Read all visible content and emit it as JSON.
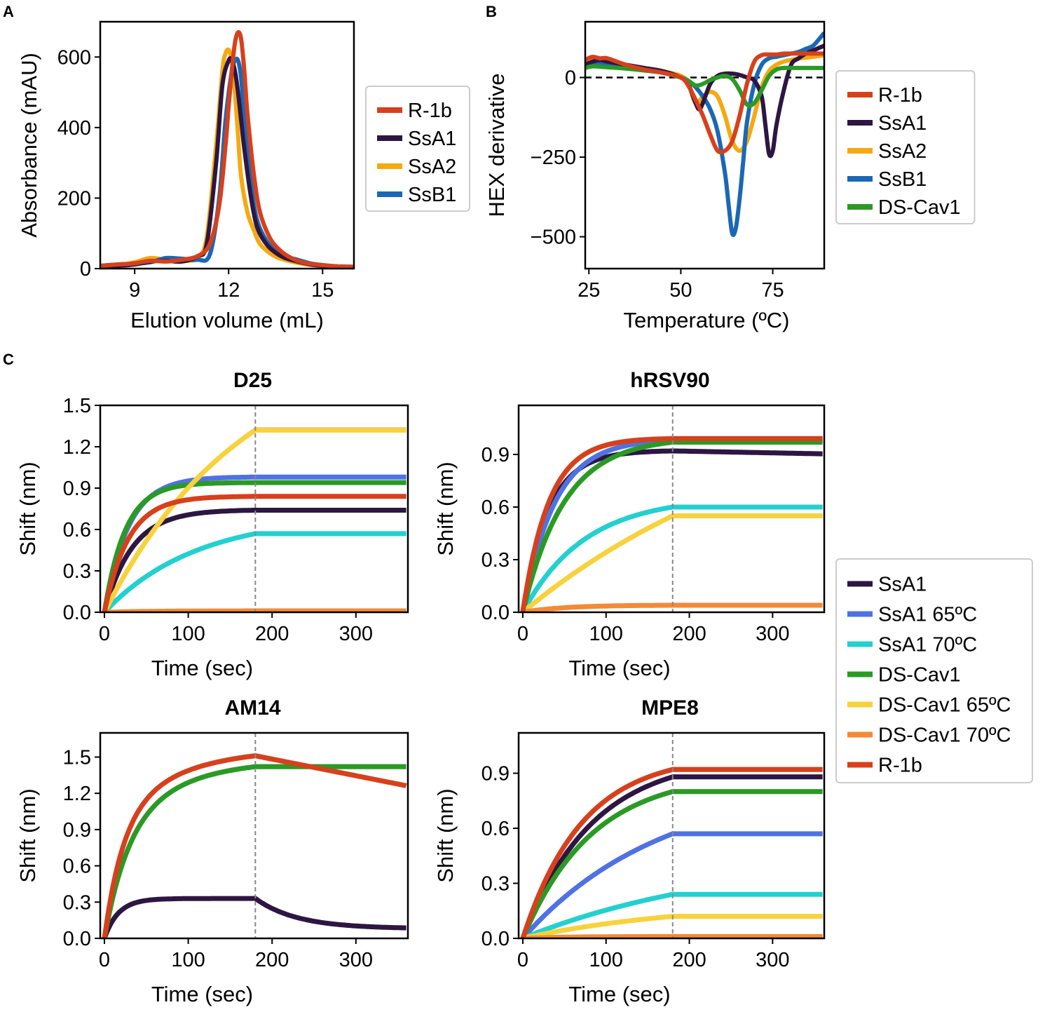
{
  "panel_letters": {
    "a": "A",
    "b": "B",
    "c": "C"
  },
  "legend_c_title": "",
  "chart_data": [
    {
      "id": "A",
      "type": "line",
      "title": "",
      "xlabel": "Elution volume (mL)",
      "ylabel": "Absorbance (mAU)",
      "xlim": [
        7.9,
        16.0
      ],
      "ylim": [
        0,
        700
      ],
      "xticks": [
        9,
        12,
        15
      ],
      "yticks": [
        0,
        200,
        400,
        600
      ],
      "legend_position": "right",
      "series": [
        {
          "name": "SsA2",
          "color": "#f5a912",
          "x": [
            7.9,
            8.5,
            9.0,
            9.5,
            10.0,
            10.5,
            11.0,
            11.3,
            11.6,
            11.8,
            11.9,
            12.0,
            12.1,
            12.2,
            12.3,
            12.4,
            12.6,
            12.8,
            13.0,
            13.3,
            13.6,
            14.0,
            14.5,
            15.0,
            15.5,
            16.0
          ],
          "y": [
            5,
            10,
            18,
            30,
            25,
            22,
            30,
            90,
            350,
            560,
            610,
            620,
            590,
            500,
            380,
            260,
            160,
            110,
            70,
            45,
            30,
            20,
            12,
            8,
            5,
            4
          ]
        },
        {
          "name": "SsB1",
          "color": "#1a68b5",
          "x": [
            7.9,
            8.5,
            9.0,
            9.5,
            10.0,
            10.5,
            11.0,
            11.4,
            11.7,
            11.9,
            12.1,
            12.2,
            12.3,
            12.4,
            12.5,
            12.7,
            12.9,
            13.2,
            13.5,
            13.8,
            14.2,
            14.6,
            15.0,
            15.5,
            16.0
          ],
          "y": [
            8,
            12,
            14,
            18,
            30,
            28,
            25,
            40,
            200,
            420,
            560,
            590,
            590,
            540,
            430,
            250,
            140,
            80,
            50,
            35,
            25,
            15,
            10,
            6,
            5
          ]
        },
        {
          "name": "SsA1",
          "color": "#2d1641",
          "x": [
            7.9,
            8.5,
            9.0,
            9.5,
            10.0,
            10.5,
            11.0,
            11.3,
            11.6,
            11.8,
            12.0,
            12.1,
            12.2,
            12.3,
            12.4,
            12.5,
            12.7,
            12.9,
            13.2,
            13.5,
            13.8,
            14.2,
            14.6,
            15.0,
            15.5,
            16.0
          ],
          "y": [
            5,
            8,
            12,
            20,
            22,
            20,
            35,
            70,
            300,
            520,
            590,
            590,
            560,
            500,
            420,
            340,
            210,
            120,
            70,
            45,
            30,
            20,
            12,
            8,
            6,
            5
          ]
        },
        {
          "name": "R-1b",
          "color": "#d7401c",
          "x": [
            7.9,
            8.5,
            9.0,
            9.5,
            10.0,
            10.5,
            11.0,
            11.4,
            11.7,
            11.9,
            12.0,
            12.1,
            12.2,
            12.3,
            12.4,
            12.5,
            12.6,
            12.8,
            13.0,
            13.3,
            13.6,
            14.0,
            14.5,
            15.0,
            15.5,
            16.0
          ],
          "y": [
            8,
            12,
            15,
            22,
            20,
            25,
            35,
            70,
            180,
            350,
            460,
            560,
            640,
            670,
            650,
            560,
            440,
            270,
            160,
            90,
            55,
            30,
            15,
            10,
            6,
            5
          ]
        }
      ],
      "legend_order": [
        "R-1b",
        "SsA1",
        "SsA2",
        "SsB1"
      ]
    },
    {
      "id": "B",
      "type": "line",
      "title": "",
      "xlabel": "Temperature (ºC)",
      "ylabel": "HEX derivative",
      "xlim": [
        24,
        89
      ],
      "ylim": [
        -600,
        175
      ],
      "xticks": [
        25,
        50,
        75
      ],
      "yticks": [
        -500,
        -250,
        0
      ],
      "zero_line": true,
      "legend_position": "right",
      "series": [
        {
          "name": "SsA2",
          "color": "#f5a912",
          "x": [
            24,
            26,
            28,
            30,
            35,
            40,
            45,
            50,
            52,
            54,
            56,
            58,
            60,
            62,
            64,
            66,
            68,
            70,
            72,
            74,
            76,
            78,
            80,
            82,
            84,
            86,
            89
          ],
          "y": [
            45,
            55,
            55,
            50,
            40,
            30,
            20,
            5,
            -20,
            -80,
            -60,
            -45,
            -60,
            -120,
            -200,
            -230,
            -200,
            -120,
            -30,
            20,
            40,
            50,
            55,
            60,
            62,
            65,
            70
          ]
        },
        {
          "name": "SsB1",
          "color": "#1a68b5",
          "x": [
            24,
            26,
            28,
            30,
            35,
            40,
            45,
            50,
            52,
            54,
            56,
            58,
            60,
            62,
            63,
            64,
            65,
            66,
            67,
            68,
            70,
            72,
            74,
            76,
            78,
            80,
            82,
            84,
            86,
            89
          ],
          "y": [
            35,
            40,
            42,
            40,
            35,
            25,
            15,
            0,
            -10,
            -30,
            -60,
            -100,
            -170,
            -300,
            -400,
            -490,
            -470,
            -380,
            -260,
            -140,
            -20,
            40,
            60,
            65,
            70,
            75,
            80,
            90,
            100,
            140
          ]
        },
        {
          "name": "SsA1",
          "color": "#2d1641",
          "x": [
            24,
            26,
            28,
            30,
            35,
            40,
            45,
            50,
            52,
            54,
            55,
            56,
            58,
            60,
            62,
            64,
            66,
            68,
            70,
            72,
            73,
            74,
            75,
            76,
            78,
            80,
            82,
            84,
            86,
            89
          ],
          "y": [
            40,
            50,
            55,
            50,
            40,
            30,
            20,
            0,
            -20,
            -80,
            -100,
            -80,
            -20,
            5,
            12,
            12,
            8,
            0,
            -10,
            -60,
            -150,
            -240,
            -230,
            -150,
            -40,
            40,
            60,
            75,
            85,
            100
          ]
        },
        {
          "name": "DS-Cav1",
          "color": "#2a9a25",
          "x": [
            24,
            26,
            30,
            35,
            40,
            45,
            50,
            52,
            54,
            56,
            58,
            60,
            62,
            64,
            66,
            68,
            70,
            72,
            74,
            76,
            78,
            80,
            84,
            89
          ],
          "y": [
            30,
            35,
            32,
            28,
            22,
            15,
            0,
            -10,
            -25,
            -20,
            -8,
            0,
            5,
            -5,
            -40,
            -85,
            -80,
            -40,
            5,
            25,
            30,
            30,
            30,
            30
          ]
        },
        {
          "name": "R-1b",
          "color": "#d7401c",
          "x": [
            24,
            26,
            28,
            30,
            35,
            40,
            45,
            50,
            52,
            54,
            56,
            58,
            60,
            62,
            64,
            66,
            68,
            70,
            72,
            74,
            76,
            78,
            80,
            84,
            89
          ],
          "y": [
            55,
            65,
            60,
            60,
            40,
            25,
            15,
            0,
            -25,
            -70,
            -120,
            -180,
            -230,
            -230,
            -200,
            -120,
            -20,
            50,
            70,
            72,
            72,
            75,
            75,
            75,
            75
          ]
        }
      ],
      "legend_order": [
        "R-1b",
        "SsA1",
        "SsA2",
        "SsB1",
        "DS-Cav1"
      ]
    },
    {
      "id": "C-D25",
      "type": "line",
      "title": "D25",
      "xlabel": "Time (sec)",
      "ylabel": "Shift (nm)",
      "xlim": [
        -5,
        362
      ],
      "ylim": [
        0,
        1.5
      ],
      "xticks": [
        0,
        100,
        200,
        300
      ],
      "yticks": [
        0.0,
        0.3,
        0.6,
        0.9,
        1.2,
        1.5
      ],
      "dashed_vline_x": 180,
      "series": [
        {
          "name": "SsA1",
          "color": "#2d1641",
          "assoc_end": 180,
          "plateau": 0.74,
          "k": 0.03,
          "dissociation_rate": 0
        },
        {
          "name": "SsA1 65ºC",
          "color": "#4f72e3",
          "assoc_end": 180,
          "plateau": 0.98,
          "k": 0.035,
          "dissociation_rate": 0
        },
        {
          "name": "SsA1 70ºC",
          "color": "#23d0d0",
          "assoc_end": 180,
          "plateau": 0.57,
          "k": 0.0092,
          "dissociation_rate": 0
        },
        {
          "name": "DS-Cav1",
          "color": "#2a9a25",
          "assoc_end": 180,
          "plateau": 0.94,
          "k": 0.04,
          "dissociation_rate": 0
        },
        {
          "name": "DS-Cav1 65ºC",
          "color": "#f7d23c",
          "assoc_end": 180,
          "plateau": 1.32,
          "k": 0.006,
          "dissociation_rate": 0
        },
        {
          "name": "DS-Cav1 70ºC",
          "color": "#f38a36",
          "assoc_end": 180,
          "plateau": 0.01,
          "k": 0.02,
          "dissociation_rate": 0
        },
        {
          "name": "R-1b",
          "color": "#d7401c",
          "assoc_end": 180,
          "plateau": 0.84,
          "k": 0.035,
          "dissociation_rate": 0
        }
      ]
    },
    {
      "id": "C-hRSV90",
      "type": "line",
      "title": "hRSV90",
      "xlabel": "Time (sec)",
      "ylabel": "Shift (nm)",
      "xlim": [
        -5,
        362
      ],
      "ylim": [
        0,
        1.18
      ],
      "xticks": [
        0,
        100,
        200,
        300
      ],
      "yticks": [
        0.0,
        0.3,
        0.6,
        0.9
      ],
      "dashed_vline_x": 180,
      "series": [
        {
          "name": "SsA1",
          "color": "#2d1641",
          "assoc_end": 180,
          "plateau": 0.92,
          "k": 0.032,
          "dissociation_rate": 0.0001
        },
        {
          "name": "SsA1 65ºC",
          "color": "#4f72e3",
          "assoc_end": 180,
          "plateau": 0.98,
          "k": 0.026,
          "dissociation_rate": 0
        },
        {
          "name": "SsA1 70ºC",
          "color": "#23d0d0",
          "assoc_end": 180,
          "plateau": 0.6,
          "k": 0.0135,
          "dissociation_rate": 0
        },
        {
          "name": "DS-Cav1",
          "color": "#2a9a25",
          "assoc_end": 180,
          "plateau": 0.97,
          "k": 0.02,
          "dissociation_rate": 0
        },
        {
          "name": "DS-Cav1 65ºC",
          "color": "#f7d23c",
          "assoc_end": 180,
          "plateau": 0.55,
          "k": 0.003,
          "dissociation_rate": 0
        },
        {
          "name": "DS-Cav1 70ºC",
          "color": "#f38a36",
          "assoc_end": 180,
          "plateau": 0.04,
          "k": 0.02,
          "dissociation_rate": 0
        },
        {
          "name": "R-1b",
          "color": "#d7401c",
          "assoc_end": 180,
          "plateau": 0.99,
          "k": 0.032,
          "dissociation_rate": 0
        }
      ]
    },
    {
      "id": "C-AM14",
      "type": "line",
      "title": "AM14",
      "xlabel": "Time (sec)",
      "ylabel": "Shift (nm)",
      "xlim": [
        -5,
        362
      ],
      "ylim": [
        0,
        1.7
      ],
      "xticks": [
        0,
        100,
        200,
        300
      ],
      "yticks": [
        0.0,
        0.3,
        0.6,
        0.9,
        1.2,
        1.5
      ],
      "dashed_vline_x": 180,
      "series": [
        {
          "name": "SsA1",
          "color": "#2d1641",
          "assoc_end": 180,
          "plateau": 0.33,
          "k": 0.06,
          "biphasic_fast": 0.0,
          "dissociation_shape": "decay",
          "dissociation_floor": 0.08,
          "dissociation_k": 0.02
        },
        {
          "name": "DS-Cav1",
          "color": "#2a9a25",
          "assoc_end": 180,
          "plateau": 1.42,
          "k": 0.035,
          "biphasic_slow": true,
          "dissociation_rate": 0
        },
        {
          "name": "R-1b",
          "color": "#d7401c",
          "assoc_end": 180,
          "plateau": 1.51,
          "k": 0.045,
          "biphasic_slow": true,
          "dissociation_shape": "linear",
          "dissociation_end": 1.26
        }
      ]
    },
    {
      "id": "C-MPE8",
      "type": "line",
      "title": "MPE8",
      "xlabel": "Time (sec)",
      "ylabel": "Shift (nm)",
      "xlim": [
        -5,
        362
      ],
      "ylim": [
        0,
        1.12
      ],
      "xticks": [
        0,
        100,
        200,
        300
      ],
      "yticks": [
        0.0,
        0.3,
        0.6,
        0.9
      ],
      "dashed_vline_x": 180,
      "series": [
        {
          "name": "SsA1",
          "color": "#2d1641",
          "assoc_end": 180,
          "plateau": 0.88,
          "k": 0.012,
          "dissociation_rate": 0
        },
        {
          "name": "SsA1 65ºC",
          "color": "#4f72e3",
          "assoc_end": 180,
          "plateau": 0.57,
          "k": 0.006,
          "dissociation_rate": 0
        },
        {
          "name": "SsA1 70ºC",
          "color": "#23d0d0",
          "assoc_end": 180,
          "plateau": 0.24,
          "k": 0.004,
          "dissociation_rate": 0
        },
        {
          "name": "DS-Cav1",
          "color": "#2a9a25",
          "assoc_end": 180,
          "plateau": 0.8,
          "k": 0.012,
          "dissociation_rate": 0
        },
        {
          "name": "DS-Cav1 65ºC",
          "color": "#f7d23c",
          "assoc_end": 180,
          "plateau": 0.12,
          "k": 0.005,
          "dissociation_rate": 0
        },
        {
          "name": "DS-Cav1 70ºC",
          "color": "#f38a36",
          "assoc_end": 180,
          "plateau": 0.01,
          "k": 0.02,
          "dissociation_rate": 0
        },
        {
          "name": "R-1b",
          "color": "#d7401c",
          "assoc_end": 180,
          "plateau": 0.92,
          "k": 0.014,
          "dissociation_rate": 0
        }
      ]
    }
  ],
  "legend_c": [
    "SsA1",
    "SsA1 65ºC",
    "SsA1 70ºC",
    "DS-Cav1",
    "DS-Cav1 65ºC",
    "DS-Cav1 70ºC",
    "R-1b"
  ],
  "legend_c_colors": [
    "#2d1641",
    "#4f72e3",
    "#23d0d0",
    "#2a9a25",
    "#f7d23c",
    "#f38a36",
    "#d7401c"
  ]
}
